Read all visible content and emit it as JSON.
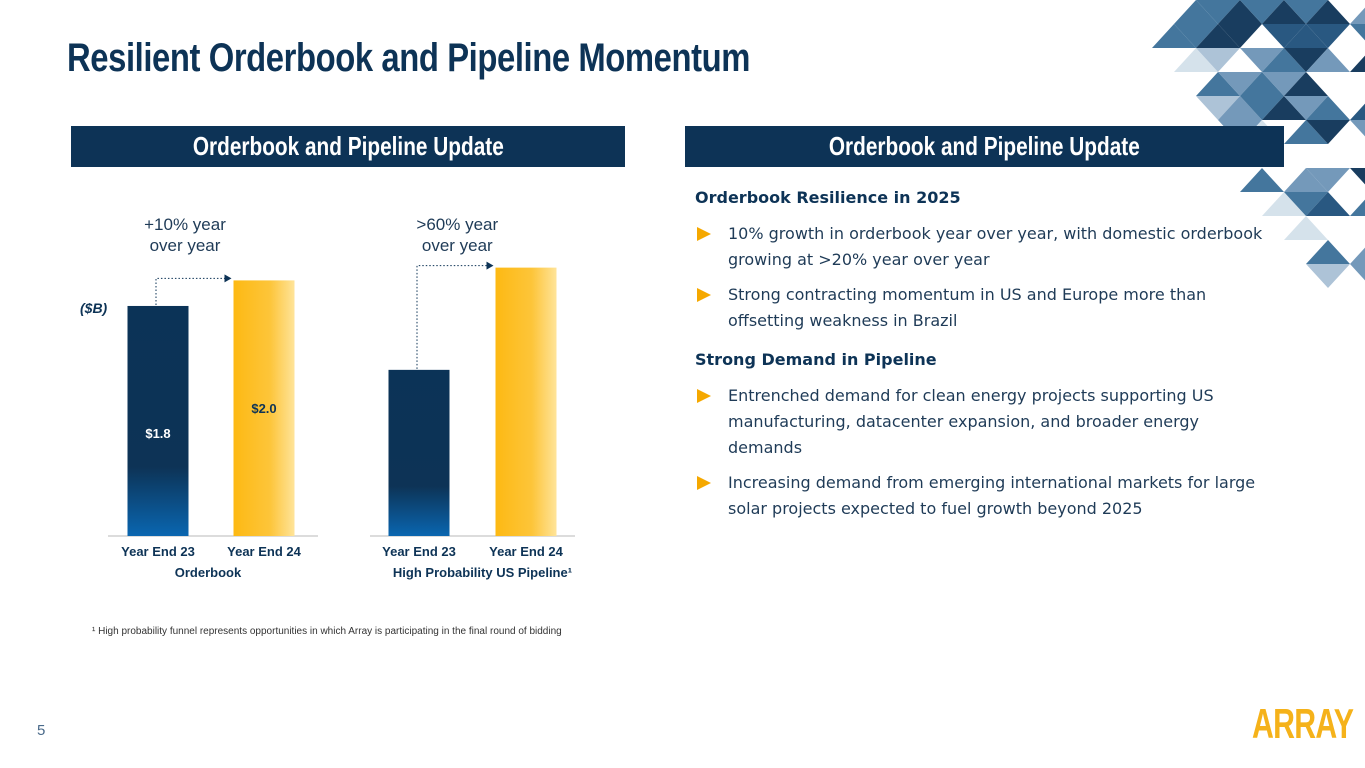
{
  "title": "Resilient Orderbook and Pipeline Momentum",
  "left_panel": {
    "header": "Orderbook and Pipeline Update",
    "unit": "($B)",
    "charts": [
      {
        "type": "bar",
        "annotation": "+10% year over year",
        "group_label": "Orderbook",
        "categories": [
          "Year End 23",
          "Year End 24"
        ],
        "values": [
          1.8,
          2.0
        ],
        "value_labels": [
          "$1.8",
          "$2.0"
        ],
        "colors": [
          "#0b3357",
          "#fdb913"
        ]
      },
      {
        "type": "bar",
        "annotation": ">60% year over year",
        "group_label": "High Probability US Pipeline¹",
        "categories": [
          "Year End 23",
          "Year End 24"
        ],
        "values": [
          1.3,
          2.1
        ],
        "colors": [
          "#0b3357",
          "#fdb913"
        ]
      }
    ],
    "footnote": "¹ High probability funnel represents opportunities in which Array is participating in the final round of bidding"
  },
  "right_panel": {
    "header": "Orderbook and Pipeline Update",
    "sections": [
      {
        "heading": "Orderbook Resilience in 2025",
        "bullets": [
          "10% growth in orderbook year over year, with domestic orderbook growing at >20% year over year",
          "Strong contracting momentum in US and Europe more than offsetting weakness in Brazil"
        ]
      },
      {
        "heading": "Strong Demand in Pipeline",
        "bullets": [
          "Entrenched demand for clean energy projects supporting US manufacturing, datacenter expansion, and broader energy demands",
          "Increasing demand from emerging international markets for large solar projects expected to fuel growth beyond 2025"
        ]
      }
    ]
  },
  "page_number": "5",
  "logo": "ARRAY"
}
